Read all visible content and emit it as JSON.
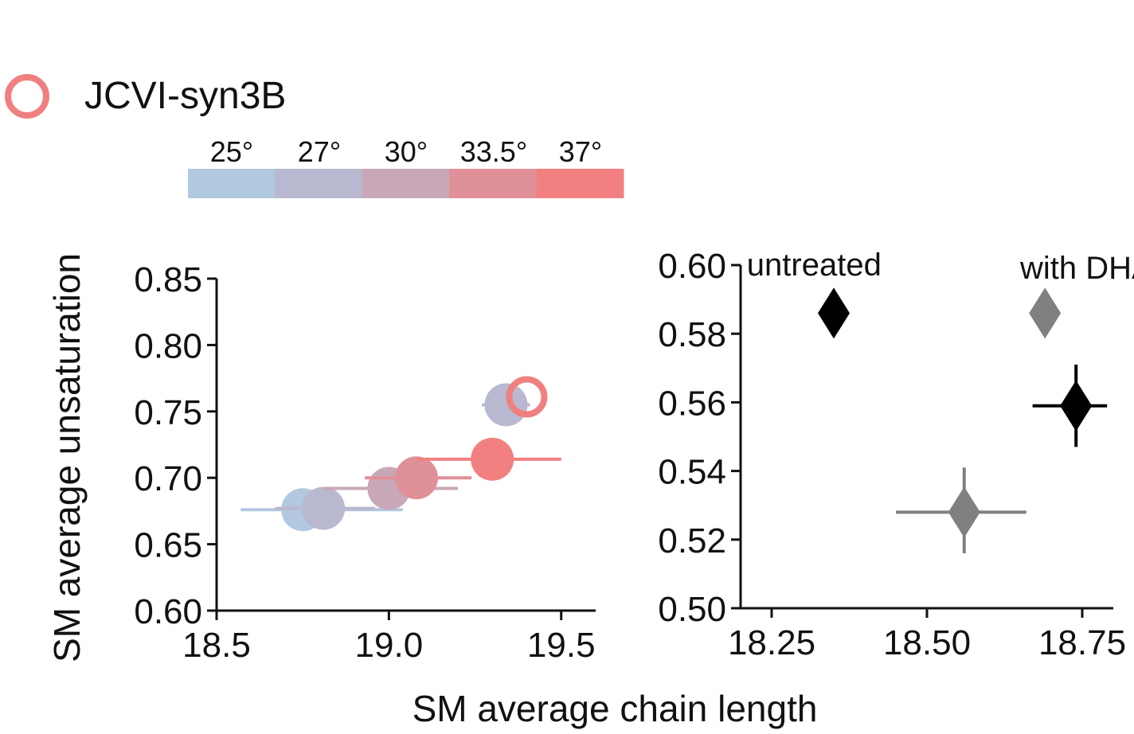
{
  "legend": {
    "label": "JCVI-syn3B",
    "marker": "open-circle",
    "color": "#f08080"
  },
  "colorbar": {
    "labels": [
      "25°",
      "27°",
      "30°",
      "33.5°",
      "37°"
    ],
    "colors": [
      "#b2c8e0",
      "#b8b8d0",
      "#c8a8b8",
      "#e09098",
      "#f28080"
    ]
  },
  "shared_xlabel": "SM average chain length",
  "chart_data": [
    {
      "type": "scatter",
      "panel": "left",
      "xlabel": "",
      "ylabel": "SM average unsaturation",
      "xlim": [
        18.5,
        19.6
      ],
      "ylim": [
        0.6,
        0.85
      ],
      "xticks": [
        "18.5",
        "19.0",
        "19.5"
      ],
      "xtick_values": [
        18.5,
        19.0,
        19.5
      ],
      "yticks": [
        "0.60",
        "0.65",
        "0.70",
        "0.75",
        "0.80",
        "0.85"
      ],
      "ytick_values": [
        0.6,
        0.65,
        0.7,
        0.75,
        0.8,
        0.85
      ],
      "series": [
        {
          "name": "25°",
          "color": "#b2c8e0",
          "filled": true,
          "points": [
            {
              "x": 18.75,
              "y": 0.676,
              "xerr": [
                18.57,
                19.04
              ],
              "yerr": [
                0.676,
                0.676
              ]
            }
          ]
        },
        {
          "name": "27°",
          "color": "#b8b8d0",
          "filled": true,
          "points": [
            {
              "x": 18.81,
              "y": 0.677,
              "xerr": [
                18.67,
                18.96
              ],
              "yerr": [
                0.677,
                0.677
              ]
            },
            {
              "x": 19.34,
              "y": 0.755,
              "xerr": [
                19.27,
                19.41
              ],
              "yerr": [
                0.746,
                0.764
              ]
            }
          ]
        },
        {
          "name": "30°",
          "color": "#c8a8b8",
          "filled": true,
          "points": [
            {
              "x": 19.0,
              "y": 0.692,
              "xerr": [
                18.81,
                19.2
              ],
              "yerr": [
                0.692,
                0.692
              ]
            }
          ]
        },
        {
          "name": "33.5°",
          "color": "#e09098",
          "filled": true,
          "points": [
            {
              "x": 19.08,
              "y": 0.7,
              "xerr": [
                18.93,
                19.24
              ],
              "yerr": [
                0.7,
                0.7
              ]
            }
          ]
        },
        {
          "name": "37°",
          "color": "#f28080",
          "filled": true,
          "points": [
            {
              "x": 19.3,
              "y": 0.714,
              "xerr": [
                19.08,
                19.5
              ],
              "yerr": [
                0.705,
                0.724
              ]
            }
          ]
        },
        {
          "name": "JCVI-syn3B",
          "color": "#f08080",
          "filled": false,
          "points": [
            {
              "x": 19.4,
              "y": 0.761
            }
          ]
        }
      ]
    },
    {
      "type": "scatter",
      "panel": "right",
      "xlabel": "",
      "ylabel": "",
      "xlim": [
        18.2,
        18.8
      ],
      "ylim": [
        0.5,
        0.6
      ],
      "xticks": [
        "18.25",
        "18.50",
        "18.75"
      ],
      "xtick_values": [
        18.25,
        18.5,
        18.75
      ],
      "yticks": [
        "0.50",
        "0.52",
        "0.54",
        "0.56",
        "0.58",
        "0.60"
      ],
      "ytick_values": [
        0.5,
        0.52,
        0.54,
        0.56,
        0.58,
        0.6
      ],
      "annotations": [
        {
          "text": "untreated",
          "x": 18.21,
          "y": 0.597
        },
        {
          "text": "with DHA",
          "x": 18.65,
          "y": 0.596
        }
      ],
      "series": [
        {
          "name": "untreated",
          "color": "#000000",
          "marker": "diamond",
          "points": [
            {
              "x": 18.35,
              "y": 0.586,
              "legend_marker": true
            },
            {
              "x": 18.74,
              "y": 0.559,
              "xerr": [
                18.67,
                18.79
              ],
              "yerr": [
                0.547,
                0.571
              ]
            }
          ]
        },
        {
          "name": "with DHA",
          "color": "#808080",
          "marker": "diamond",
          "points": [
            {
              "x": 18.69,
              "y": 0.586,
              "legend_marker": true
            },
            {
              "x": 18.56,
              "y": 0.528,
              "xerr": [
                18.45,
                18.66
              ],
              "yerr": [
                0.516,
                0.541
              ]
            }
          ]
        }
      ]
    }
  ]
}
